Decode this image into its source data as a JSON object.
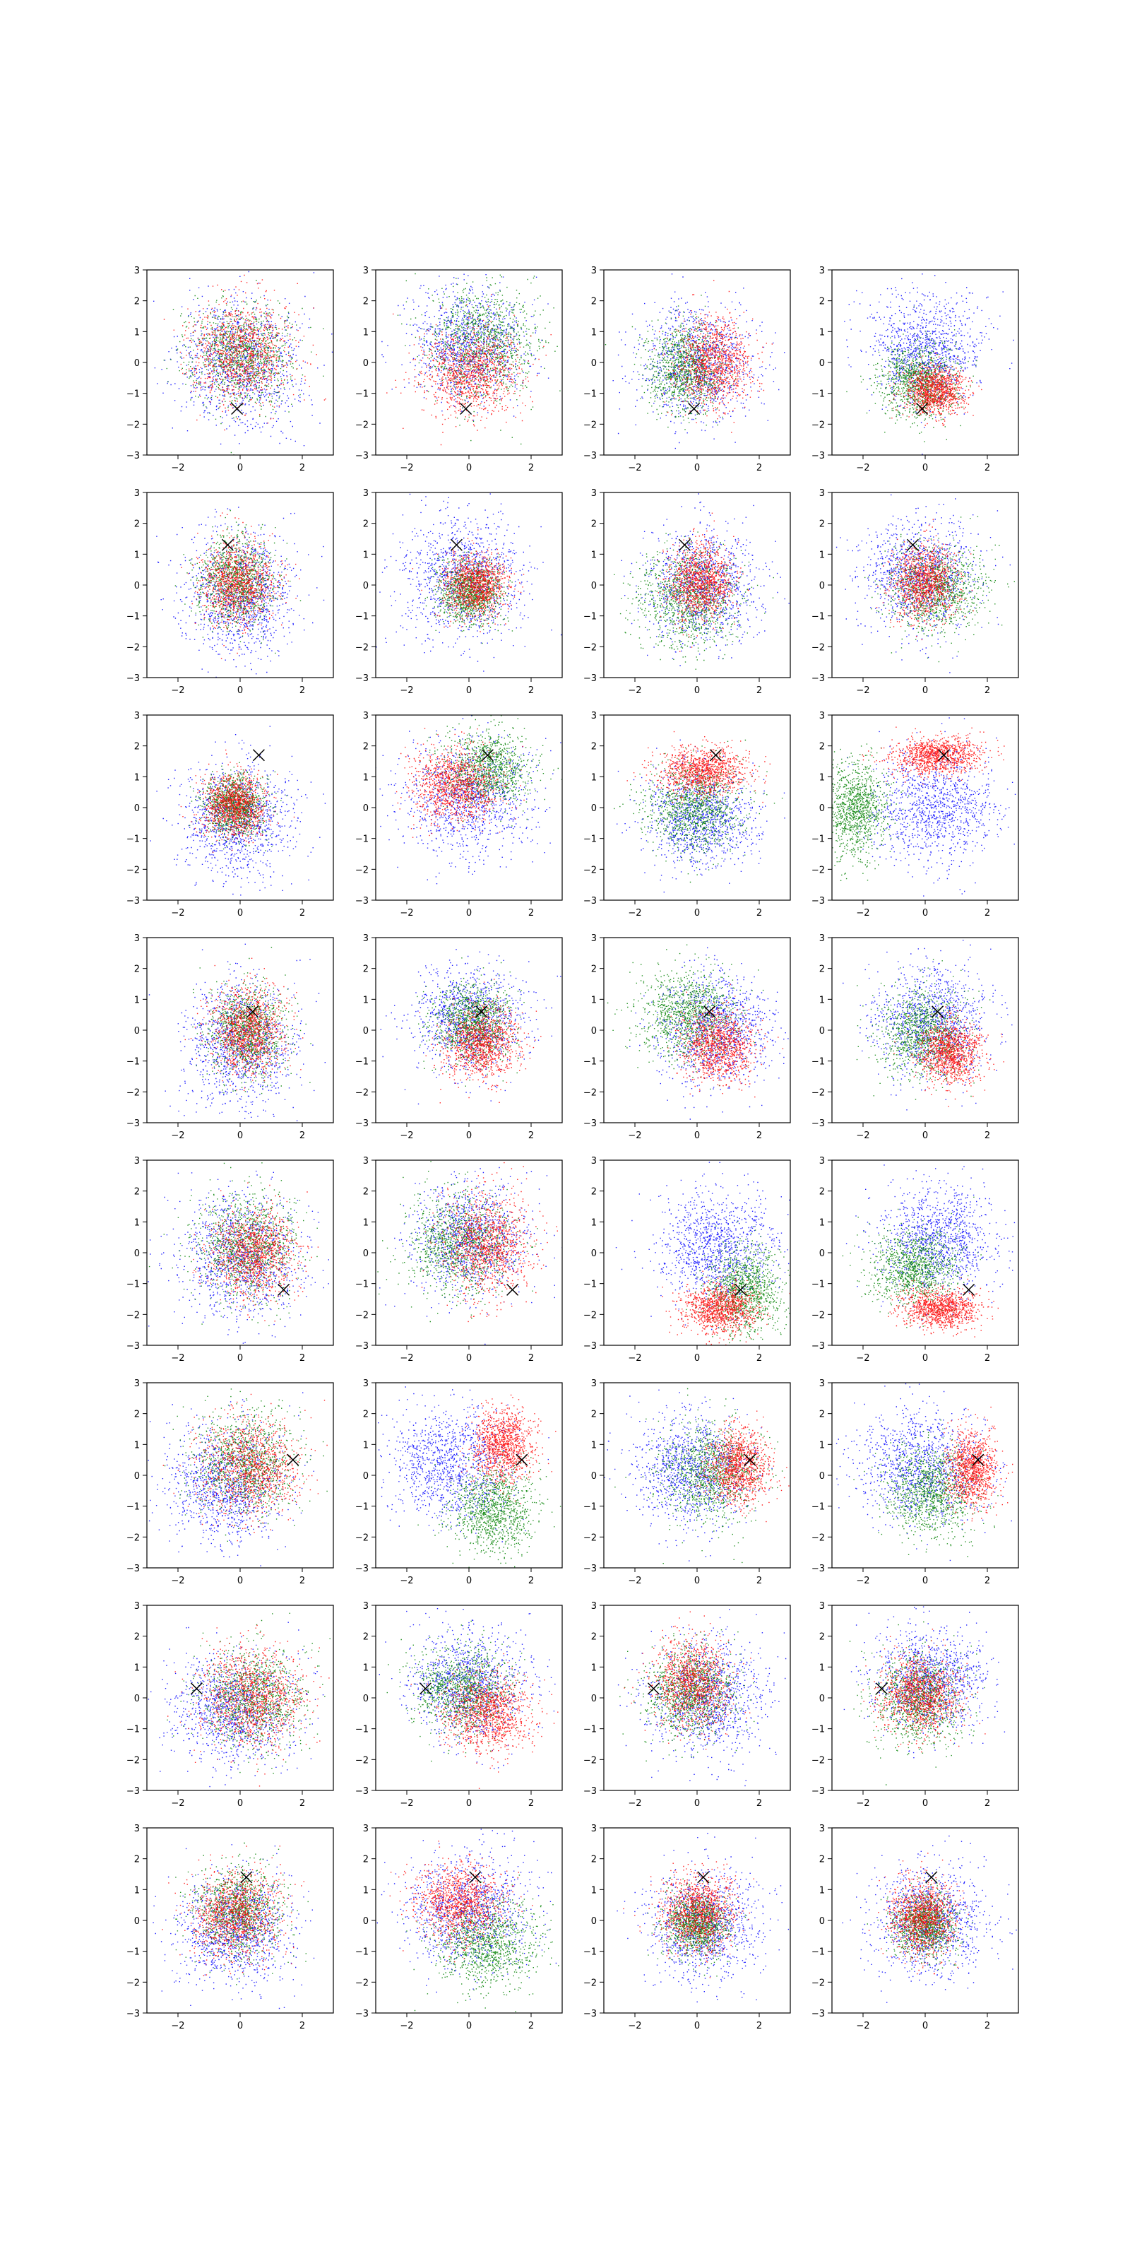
{
  "figure": {
    "rows": 8,
    "cols": 4,
    "series_colors": {
      "blue": "#0000ff",
      "green": "#008000",
      "red": "#ff0000"
    },
    "marker": "x",
    "marker_color": "#000000"
  },
  "chart_data": {
    "type": "scatter",
    "description_grid": "8 rows x 4 columns of scatter subplots; each shows three point clouds (blue, green, red) and one black x marker",
    "xlim": [
      -3,
      3
    ],
    "ylim": [
      -3,
      3
    ],
    "x_ticks": [
      "−2",
      "0",
      "2"
    ],
    "y_ticks": [
      "−3",
      "−2",
      "−1",
      "0",
      "1",
      "2",
      "3"
    ],
    "grid": false,
    "legend": "none",
    "panels": [
      {
        "row": 0,
        "col": 0,
        "marker": [
          -0.1,
          -1.5
        ],
        "clouds": [
          {
            "color": "blue",
            "cx": 0,
            "cy": 0,
            "sx": 0.95,
            "sy": 1.05
          },
          {
            "color": "green",
            "cx": 0,
            "cy": 0.3,
            "sx": 0.8,
            "sy": 0.8
          },
          {
            "color": "red",
            "cx": 0,
            "cy": 0.3,
            "sx": 0.8,
            "sy": 0.8
          }
        ]
      },
      {
        "row": 0,
        "col": 1,
        "marker": [
          -0.1,
          -1.5
        ],
        "clouds": [
          {
            "color": "blue",
            "cx": 0,
            "cy": 0.6,
            "sx": 0.9,
            "sy": 0.9
          },
          {
            "color": "green",
            "cx": 0.4,
            "cy": 0.7,
            "sx": 0.9,
            "sy": 0.9
          },
          {
            "color": "red",
            "cx": 0,
            "cy": -0.3,
            "sx": 0.8,
            "sy": 0.7
          }
        ]
      },
      {
        "row": 0,
        "col": 2,
        "marker": [
          -0.1,
          -1.5
        ],
        "clouds": [
          {
            "color": "blue",
            "cx": 0,
            "cy": 0,
            "sx": 0.9,
            "sy": 0.9
          },
          {
            "color": "green",
            "cx": -0.4,
            "cy": -0.2,
            "sx": 0.6,
            "sy": 0.7
          },
          {
            "color": "red",
            "cx": 0.5,
            "cy": 0,
            "sx": 0.6,
            "sy": 0.7
          }
        ]
      },
      {
        "row": 0,
        "col": 3,
        "marker": [
          -0.1,
          -1.5
        ],
        "clouds": [
          {
            "color": "blue",
            "cx": 0,
            "cy": 0.5,
            "sx": 0.9,
            "sy": 0.9
          },
          {
            "color": "green",
            "cx": -0.2,
            "cy": -0.6,
            "sx": 0.6,
            "sy": 0.6
          },
          {
            "color": "red",
            "cx": 0.3,
            "cy": -0.9,
            "sx": 0.5,
            "sy": 0.4
          }
        ]
      },
      {
        "row": 1,
        "col": 0,
        "marker": [
          -0.4,
          1.3
        ],
        "clouds": [
          {
            "color": "blue",
            "cx": 0,
            "cy": -0.3,
            "sx": 0.9,
            "sy": 1.0
          },
          {
            "color": "green",
            "cx": -0.1,
            "cy": 0.1,
            "sx": 0.6,
            "sy": 0.7
          },
          {
            "color": "red",
            "cx": -0.1,
            "cy": 0.1,
            "sx": 0.6,
            "sy": 0.7
          }
        ]
      },
      {
        "row": 1,
        "col": 1,
        "marker": [
          -0.4,
          1.3
        ],
        "clouds": [
          {
            "color": "blue",
            "cx": -0.2,
            "cy": 0.3,
            "sx": 1.0,
            "sy": 1.0
          },
          {
            "color": "green",
            "cx": 0,
            "cy": -0.2,
            "sx": 0.5,
            "sy": 0.5
          },
          {
            "color": "red",
            "cx": 0.2,
            "cy": 0,
            "sx": 0.5,
            "sy": 0.5
          }
        ]
      },
      {
        "row": 1,
        "col": 2,
        "marker": [
          -0.4,
          1.3
        ],
        "clouds": [
          {
            "color": "blue",
            "cx": 0.2,
            "cy": 0,
            "sx": 0.9,
            "sy": 0.9
          },
          {
            "color": "green",
            "cx": -0.3,
            "cy": -0.4,
            "sx": 0.8,
            "sy": 0.8
          },
          {
            "color": "red",
            "cx": 0.1,
            "cy": 0.1,
            "sx": 0.5,
            "sy": 0.6
          }
        ]
      },
      {
        "row": 1,
        "col": 3,
        "marker": [
          -0.4,
          1.3
        ],
        "clouds": [
          {
            "color": "blue",
            "cx": -0.2,
            "cy": 0.3,
            "sx": 0.9,
            "sy": 0.9
          },
          {
            "color": "green",
            "cx": 0.3,
            "cy": -0.1,
            "sx": 0.8,
            "sy": 0.7
          },
          {
            "color": "red",
            "cx": 0,
            "cy": 0.1,
            "sx": 0.5,
            "sy": 0.6
          }
        ]
      },
      {
        "row": 2,
        "col": 0,
        "marker": [
          0.6,
          1.7
        ],
        "clouds": [
          {
            "color": "blue",
            "cx": -0.1,
            "cy": -0.4,
            "sx": 0.9,
            "sy": 0.9
          },
          {
            "color": "green",
            "cx": -0.2,
            "cy": 0.1,
            "sx": 0.5,
            "sy": 0.5
          },
          {
            "color": "red",
            "cx": -0.2,
            "cy": 0.1,
            "sx": 0.5,
            "sy": 0.5
          }
        ]
      },
      {
        "row": 2,
        "col": 1,
        "marker": [
          0.6,
          1.7
        ],
        "clouds": [
          {
            "color": "blue",
            "cx": 0,
            "cy": 0.3,
            "sx": 1.0,
            "sy": 0.9
          },
          {
            "color": "green",
            "cx": 0.6,
            "cy": 1.3,
            "sx": 0.7,
            "sy": 0.6
          },
          {
            "color": "red",
            "cx": -0.4,
            "cy": 0.7,
            "sx": 0.7,
            "sy": 0.6
          }
        ]
      },
      {
        "row": 2,
        "col": 2,
        "marker": [
          0.6,
          1.7
        ],
        "clouds": [
          {
            "color": "blue",
            "cx": 0.1,
            "cy": -0.3,
            "sx": 0.9,
            "sy": 0.8
          },
          {
            "color": "green",
            "cx": -0.1,
            "cy": 0,
            "sx": 0.8,
            "sy": 0.7
          },
          {
            "color": "red",
            "cx": 0.2,
            "cy": 1.2,
            "sx": 0.7,
            "sy": 0.4
          }
        ]
      },
      {
        "row": 2,
        "col": 3,
        "marker": [
          0.6,
          1.7
        ],
        "clouds": [
          {
            "color": "blue",
            "cx": 0.3,
            "cy": 0,
            "sx": 1.0,
            "sy": 0.9
          },
          {
            "color": "green",
            "cx": -2.2,
            "cy": 0,
            "sx": 0.5,
            "sy": 0.8
          },
          {
            "color": "red",
            "cx": 0.4,
            "cy": 1.7,
            "sx": 0.7,
            "sy": 0.3
          }
        ]
      },
      {
        "row": 3,
        "col": 0,
        "marker": [
          0.4,
          0.6
        ],
        "clouds": [
          {
            "color": "blue",
            "cx": 0,
            "cy": -0.4,
            "sx": 0.9,
            "sy": 1.0
          },
          {
            "color": "green",
            "cx": 0.2,
            "cy": 0,
            "sx": 0.6,
            "sy": 0.7
          },
          {
            "color": "red",
            "cx": 0.2,
            "cy": 0,
            "sx": 0.6,
            "sy": 0.7
          }
        ]
      },
      {
        "row": 3,
        "col": 1,
        "marker": [
          0.4,
          0.6
        ],
        "clouds": [
          {
            "color": "blue",
            "cx": 0,
            "cy": 0.4,
            "sx": 0.9,
            "sy": 0.8
          },
          {
            "color": "green",
            "cx": 0.1,
            "cy": 0.3,
            "sx": 0.6,
            "sy": 0.6
          },
          {
            "color": "red",
            "cx": 0.4,
            "cy": -0.4,
            "sx": 0.6,
            "sy": 0.6
          }
        ]
      },
      {
        "row": 3,
        "col": 2,
        "marker": [
          0.4,
          0.6
        ],
        "clouds": [
          {
            "color": "blue",
            "cx": 0.6,
            "cy": 0,
            "sx": 0.9,
            "sy": 0.9
          },
          {
            "color": "green",
            "cx": -0.3,
            "cy": 0.5,
            "sx": 0.8,
            "sy": 0.7
          },
          {
            "color": "red",
            "cx": 0.7,
            "cy": -0.5,
            "sx": 0.6,
            "sy": 0.6
          }
        ]
      },
      {
        "row": 3,
        "col": 3,
        "marker": [
          0.4,
          0.6
        ],
        "clouds": [
          {
            "color": "blue",
            "cx": 0.2,
            "cy": 0.3,
            "sx": 0.9,
            "sy": 0.9
          },
          {
            "color": "green",
            "cx": -0.1,
            "cy": -0.1,
            "sx": 0.7,
            "sy": 0.7
          },
          {
            "color": "red",
            "cx": 0.8,
            "cy": -0.7,
            "sx": 0.5,
            "sy": 0.5
          }
        ]
      },
      {
        "row": 4,
        "col": 0,
        "marker": [
          1.4,
          -1.2
        ],
        "clouds": [
          {
            "color": "blue",
            "cx": 0,
            "cy": -0.2,
            "sx": 1.0,
            "sy": 1.0
          },
          {
            "color": "green",
            "cx": 0.2,
            "cy": 0.2,
            "sx": 0.8,
            "sy": 0.8
          },
          {
            "color": "red",
            "cx": 0.4,
            "cy": 0,
            "sx": 0.7,
            "sy": 0.7
          }
        ]
      },
      {
        "row": 4,
        "col": 1,
        "marker": [
          1.4,
          -1.2
        ],
        "clouds": [
          {
            "color": "blue",
            "cx": 0,
            "cy": 0.4,
            "sx": 0.9,
            "sy": 0.9
          },
          {
            "color": "green",
            "cx": -0.3,
            "cy": 0.3,
            "sx": 0.8,
            "sy": 0.8
          },
          {
            "color": "red",
            "cx": 0.6,
            "cy": 0.3,
            "sx": 0.7,
            "sy": 0.8
          }
        ]
      },
      {
        "row": 4,
        "col": 2,
        "marker": [
          1.4,
          -1.2
        ],
        "clouds": [
          {
            "color": "blue",
            "cx": 0.6,
            "cy": 0.2,
            "sx": 0.9,
            "sy": 0.9
          },
          {
            "color": "green",
            "cx": 1.5,
            "cy": -1.2,
            "sx": 0.6,
            "sy": 0.7
          },
          {
            "color": "red",
            "cx": 0.7,
            "cy": -1.8,
            "sx": 0.6,
            "sy": 0.4
          }
        ]
      },
      {
        "row": 4,
        "col": 3,
        "marker": [
          1.4,
          -1.2
        ],
        "clouds": [
          {
            "color": "blue",
            "cx": 0.4,
            "cy": 0.5,
            "sx": 0.9,
            "sy": 0.9
          },
          {
            "color": "green",
            "cx": -0.3,
            "cy": -0.5,
            "sx": 0.7,
            "sy": 0.6
          },
          {
            "color": "red",
            "cx": 0.5,
            "cy": -1.8,
            "sx": 0.6,
            "sy": 0.3
          }
        ]
      },
      {
        "row": 5,
        "col": 0,
        "marker": [
          1.7,
          0.5
        ],
        "clouds": [
          {
            "color": "blue",
            "cx": -0.5,
            "cy": -0.3,
            "sx": 0.9,
            "sy": 1.0
          },
          {
            "color": "green",
            "cx": 0.2,
            "cy": 0.4,
            "sx": 0.8,
            "sy": 0.8
          },
          {
            "color": "red",
            "cx": 0.3,
            "cy": 0.3,
            "sx": 0.8,
            "sy": 0.8
          }
        ]
      },
      {
        "row": 5,
        "col": 1,
        "marker": [
          1.7,
          0.5
        ],
        "clouds": [
          {
            "color": "blue",
            "cx": -0.6,
            "cy": 0.4,
            "sx": 1.0,
            "sy": 0.9
          },
          {
            "color": "green",
            "cx": 0.8,
            "cy": -1.1,
            "sx": 0.7,
            "sy": 0.7
          },
          {
            "color": "red",
            "cx": 1.1,
            "cy": 1.0,
            "sx": 0.5,
            "sy": 0.6
          }
        ]
      },
      {
        "row": 5,
        "col": 2,
        "marker": [
          1.7,
          0.5
        ],
        "clouds": [
          {
            "color": "blue",
            "cx": -0.2,
            "cy": 0.2,
            "sx": 1.0,
            "sy": 0.9
          },
          {
            "color": "green",
            "cx": 0.4,
            "cy": 0.1,
            "sx": 0.8,
            "sy": 0.8
          },
          {
            "color": "red",
            "cx": 1.3,
            "cy": 0.3,
            "sx": 0.5,
            "sy": 0.6
          }
        ]
      },
      {
        "row": 5,
        "col": 3,
        "marker": [
          1.7,
          0.5
        ],
        "clouds": [
          {
            "color": "blue",
            "cx": -0.2,
            "cy": 0.3,
            "sx": 1.0,
            "sy": 0.9
          },
          {
            "color": "green",
            "cx": 0.2,
            "cy": -0.5,
            "sx": 0.7,
            "sy": 0.7
          },
          {
            "color": "red",
            "cx": 1.5,
            "cy": 0.2,
            "sx": 0.4,
            "sy": 0.6
          }
        ]
      },
      {
        "row": 6,
        "col": 0,
        "marker": [
          -1.4,
          0.3
        ],
        "clouds": [
          {
            "color": "blue",
            "cx": -0.2,
            "cy": -0.3,
            "sx": 1.0,
            "sy": 0.9
          },
          {
            "color": "green",
            "cx": 0.4,
            "cy": 0,
            "sx": 0.8,
            "sy": 0.8
          },
          {
            "color": "red",
            "cx": 0.4,
            "cy": 0,
            "sx": 0.8,
            "sy": 0.8
          }
        ]
      },
      {
        "row": 6,
        "col": 1,
        "marker": [
          -1.4,
          0.3
        ],
        "clouds": [
          {
            "color": "blue",
            "cx": 0,
            "cy": 0.5,
            "sx": 0.9,
            "sy": 0.9
          },
          {
            "color": "green",
            "cx": -0.2,
            "cy": 0.3,
            "sx": 0.8,
            "sy": 0.7
          },
          {
            "color": "red",
            "cx": 0.6,
            "cy": -0.5,
            "sx": 0.7,
            "sy": 0.6
          }
        ]
      },
      {
        "row": 6,
        "col": 2,
        "marker": [
          -1.4,
          0.3
        ],
        "clouds": [
          {
            "color": "blue",
            "cx": 0.3,
            "cy": 0,
            "sx": 0.9,
            "sy": 0.9
          },
          {
            "color": "green",
            "cx": -0.2,
            "cy": 0.2,
            "sx": 0.7,
            "sy": 0.7
          },
          {
            "color": "red",
            "cx": -0.2,
            "cy": 0.5,
            "sx": 0.6,
            "sy": 0.7
          }
        ]
      },
      {
        "row": 6,
        "col": 3,
        "marker": [
          -1.4,
          0.3
        ],
        "clouds": [
          {
            "color": "blue",
            "cx": 0.2,
            "cy": 0.6,
            "sx": 0.9,
            "sy": 0.8
          },
          {
            "color": "green",
            "cx": -0.2,
            "cy": 0,
            "sx": 0.7,
            "sy": 0.7
          },
          {
            "color": "red",
            "cx": -0.2,
            "cy": 0.1,
            "sx": 0.6,
            "sy": 0.6
          }
        ]
      },
      {
        "row": 7,
        "col": 0,
        "marker": [
          0.2,
          1.4
        ],
        "clouds": [
          {
            "color": "blue",
            "cx": -0.2,
            "cy": -0.3,
            "sx": 0.9,
            "sy": 0.9
          },
          {
            "color": "green",
            "cx": -0.1,
            "cy": 0.3,
            "sx": 0.7,
            "sy": 0.7
          },
          {
            "color": "red",
            "cx": -0.1,
            "cy": 0.2,
            "sx": 0.7,
            "sy": 0.7
          }
        ]
      },
      {
        "row": 7,
        "col": 1,
        "marker": [
          0.2,
          1.4
        ],
        "clouds": [
          {
            "color": "blue",
            "cx": 0,
            "cy": 0.3,
            "sx": 1.0,
            "sy": 0.9
          },
          {
            "color": "green",
            "cx": 0.6,
            "cy": -0.8,
            "sx": 0.8,
            "sy": 0.7
          },
          {
            "color": "red",
            "cx": -0.3,
            "cy": 0.6,
            "sx": 0.7,
            "sy": 0.6
          }
        ]
      },
      {
        "row": 7,
        "col": 2,
        "marker": [
          0.2,
          1.4
        ],
        "clouds": [
          {
            "color": "blue",
            "cx": 0.2,
            "cy": -0.1,
            "sx": 0.9,
            "sy": 0.9
          },
          {
            "color": "green",
            "cx": 0,
            "cy": -0.1,
            "sx": 0.5,
            "sy": 0.5
          },
          {
            "color": "red",
            "cx": 0,
            "cy": 0.3,
            "sx": 0.6,
            "sy": 0.6
          }
        ]
      },
      {
        "row": 7,
        "col": 3,
        "marker": [
          0.2,
          1.4
        ],
        "clouds": [
          {
            "color": "blue",
            "cx": 0.2,
            "cy": 0,
            "sx": 0.9,
            "sy": 0.9
          },
          {
            "color": "green",
            "cx": 0,
            "cy": -0.1,
            "sx": 0.5,
            "sy": 0.5
          },
          {
            "color": "red",
            "cx": -0.1,
            "cy": 0.1,
            "sx": 0.5,
            "sy": 0.6
          }
        ]
      }
    ]
  }
}
